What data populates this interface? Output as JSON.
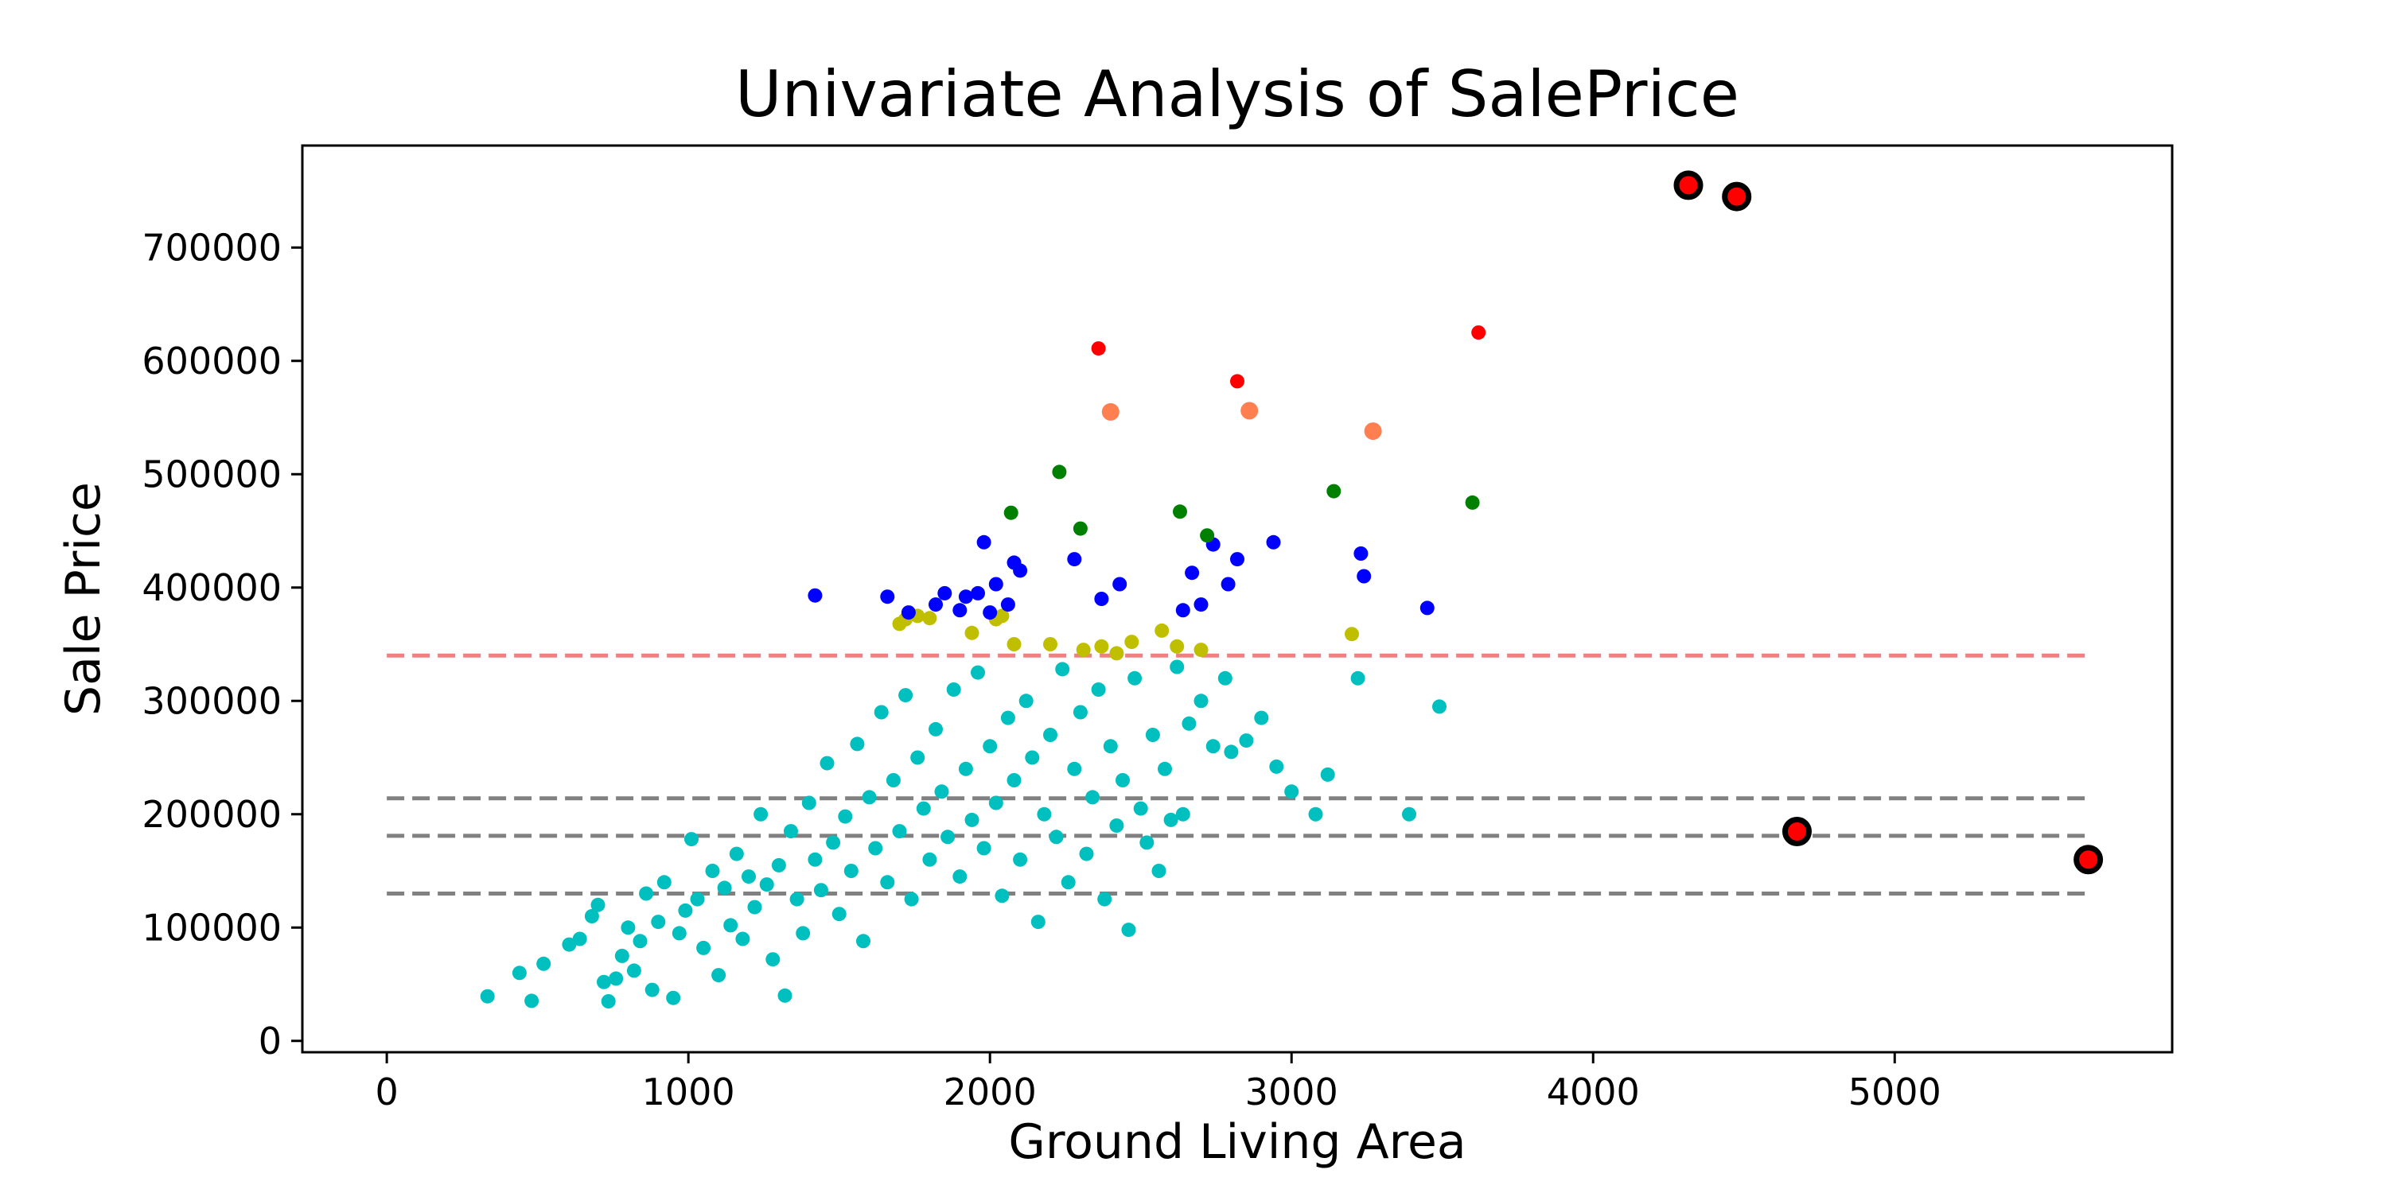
{
  "chart_data": {
    "type": "scatter",
    "title": "Univariate Analysis of SalePrice",
    "xlabel": "Ground Living Area",
    "ylabel": "Sale Price",
    "xlim": [
      -280,
      5920
    ],
    "ylim": [
      -10000,
      790000
    ],
    "xticks": [
      0,
      1000,
      2000,
      3000,
      4000,
      5000
    ],
    "yticks": [
      0,
      100000,
      200000,
      300000,
      400000,
      500000,
      600000,
      700000
    ],
    "grid": false,
    "legend": "none",
    "hlines": [
      {
        "y": 340000,
        "color": "#f08080",
        "style": "dashed"
      },
      {
        "y": 214000,
        "color": "#808080",
        "style": "dashed"
      },
      {
        "y": 181000,
        "color": "#808080",
        "style": "dashed"
      },
      {
        "y": 130000,
        "color": "#808080",
        "style": "dashed"
      }
    ],
    "hline_xrange": [
      0,
      5650
    ],
    "series": [
      {
        "color": "#00bfbf",
        "points": [
          [
            334,
            39300
          ],
          [
            480,
            35300
          ],
          [
            440,
            60000
          ],
          [
            520,
            68000
          ],
          [
            605,
            85000
          ],
          [
            640,
            90000
          ],
          [
            680,
            110000
          ],
          [
            700,
            120000
          ],
          [
            720,
            52000
          ],
          [
            735,
            34900
          ],
          [
            760,
            55000
          ],
          [
            780,
            75000
          ],
          [
            800,
            100000
          ],
          [
            820,
            62000
          ],
          [
            840,
            88000
          ],
          [
            860,
            130000
          ],
          [
            880,
            45000
          ],
          [
            900,
            105000
          ],
          [
            920,
            140000
          ],
          [
            950,
            37900
          ],
          [
            970,
            95000
          ],
          [
            990,
            115000
          ],
          [
            1010,
            178000
          ],
          [
            1030,
            125000
          ],
          [
            1050,
            82000
          ],
          [
            1080,
            150000
          ],
          [
            1100,
            58000
          ],
          [
            1120,
            135000
          ],
          [
            1140,
            102000
          ],
          [
            1160,
            165000
          ],
          [
            1180,
            90000
          ],
          [
            1200,
            145000
          ],
          [
            1220,
            118000
          ],
          [
            1240,
            200000
          ],
          [
            1260,
            138000
          ],
          [
            1280,
            72000
          ],
          [
            1300,
            155000
          ],
          [
            1320,
            40000
          ],
          [
            1340,
            185000
          ],
          [
            1360,
            125000
          ],
          [
            1380,
            95000
          ],
          [
            1400,
            210000
          ],
          [
            1420,
            160000
          ],
          [
            1440,
            133000
          ],
          [
            1460,
            245000
          ],
          [
            1480,
            175000
          ],
          [
            1500,
            112000
          ],
          [
            1520,
            198000
          ],
          [
            1540,
            150000
          ],
          [
            1560,
            262000
          ],
          [
            1580,
            88000
          ],
          [
            1600,
            215000
          ],
          [
            1620,
            170000
          ],
          [
            1640,
            290000
          ],
          [
            1660,
            140000
          ],
          [
            1680,
            230000
          ],
          [
            1700,
            185000
          ],
          [
            1720,
            305000
          ],
          [
            1740,
            125000
          ],
          [
            1760,
            250000
          ],
          [
            1780,
            205000
          ],
          [
            1800,
            160000
          ],
          [
            1820,
            275000
          ],
          [
            1840,
            220000
          ],
          [
            1860,
            180000
          ],
          [
            1880,
            310000
          ],
          [
            1900,
            145000
          ],
          [
            1920,
            240000
          ],
          [
            1940,
            195000
          ],
          [
            1960,
            325000
          ],
          [
            1980,
            170000
          ],
          [
            2000,
            260000
          ],
          [
            2020,
            210000
          ],
          [
            2040,
            128000
          ],
          [
            2060,
            285000
          ],
          [
            2080,
            230000
          ],
          [
            2100,
            160000
          ],
          [
            2120,
            300000
          ],
          [
            2140,
            250000
          ],
          [
            2160,
            105000
          ],
          [
            2180,
            200000
          ],
          [
            2200,
            270000
          ],
          [
            2220,
            180000
          ],
          [
            2240,
            328000
          ],
          [
            2260,
            140000
          ],
          [
            2280,
            240000
          ],
          [
            2300,
            290000
          ],
          [
            2320,
            165000
          ],
          [
            2340,
            215000
          ],
          [
            2360,
            310000
          ],
          [
            2380,
            125000
          ],
          [
            2400,
            260000
          ],
          [
            2420,
            190000
          ],
          [
            2440,
            230000
          ],
          [
            2460,
            98000
          ],
          [
            2480,
            320000
          ],
          [
            2500,
            205000
          ],
          [
            2520,
            175000
          ],
          [
            2540,
            270000
          ],
          [
            2560,
            150000
          ],
          [
            2580,
            240000
          ],
          [
            2600,
            195000
          ],
          [
            2620,
            330000
          ],
          [
            2640,
            200000
          ],
          [
            2660,
            280000
          ],
          [
            2700,
            300000
          ],
          [
            2740,
            260000
          ],
          [
            2780,
            320000
          ],
          [
            2800,
            255000
          ],
          [
            2850,
            265000
          ],
          [
            2900,
            285000
          ],
          [
            2950,
            242000
          ],
          [
            3000,
            220000
          ],
          [
            3080,
            200000
          ],
          [
            3120,
            235000
          ],
          [
            3220,
            320000
          ],
          [
            3390,
            200000
          ],
          [
            3490,
            295000
          ]
        ]
      },
      {
        "color": "#bfbf00",
        "points": [
          [
            1700,
            368000
          ],
          [
            1720,
            372000
          ],
          [
            1760,
            375000
          ],
          [
            1800,
            373000
          ],
          [
            1940,
            360000
          ],
          [
            2020,
            372000
          ],
          [
            2040,
            375000
          ],
          [
            2080,
            350000
          ],
          [
            2200,
            350000
          ],
          [
            2310,
            345000
          ],
          [
            2370,
            348000
          ],
          [
            2420,
            342000
          ],
          [
            2470,
            352000
          ],
          [
            2570,
            362000
          ],
          [
            2620,
            348000
          ],
          [
            2700,
            345000
          ],
          [
            3200,
            359000
          ]
        ]
      },
      {
        "color": "#0000ff",
        "points": [
          [
            1420,
            393000
          ],
          [
            1660,
            392000
          ],
          [
            1730,
            378000
          ],
          [
            1820,
            385000
          ],
          [
            1850,
            395000
          ],
          [
            1900,
            380000
          ],
          [
            1920,
            392000
          ],
          [
            1960,
            395000
          ],
          [
            1980,
            440000
          ],
          [
            2000,
            378000
          ],
          [
            2020,
            403000
          ],
          [
            2060,
            385000
          ],
          [
            2080,
            422000
          ],
          [
            2100,
            415000
          ],
          [
            2280,
            425000
          ],
          [
            2370,
            390000
          ],
          [
            2430,
            403000
          ],
          [
            2640,
            380000
          ],
          [
            2670,
            413000
          ],
          [
            2700,
            385000
          ],
          [
            2740,
            438000
          ],
          [
            2790,
            403000
          ],
          [
            2820,
            425000
          ],
          [
            2940,
            440000
          ],
          [
            3230,
            430000
          ],
          [
            3240,
            410000
          ],
          [
            3450,
            382000
          ]
        ]
      },
      {
        "color": "#008000",
        "points": [
          [
            2070,
            466000
          ],
          [
            2230,
            502000
          ],
          [
            2300,
            452000
          ],
          [
            2630,
            467000
          ],
          [
            2720,
            446000
          ],
          [
            3140,
            485000
          ],
          [
            3600,
            475000
          ]
        ]
      },
      {
        "color": "#ff7f50",
        "size": "large",
        "points": [
          [
            2400,
            555000
          ],
          [
            2860,
            556000
          ],
          [
            3270,
            538000
          ]
        ]
      },
      {
        "color": "#ff0000",
        "points": [
          [
            2360,
            611000
          ],
          [
            2820,
            582000
          ],
          [
            3620,
            625000
          ]
        ]
      },
      {
        "color": "#ff0000",
        "outline": "#000000",
        "size": "outlier",
        "points": [
          [
            4316,
            755000
          ],
          [
            4476,
            745000
          ],
          [
            4676,
            184750
          ],
          [
            5642,
            160000
          ]
        ]
      }
    ]
  }
}
